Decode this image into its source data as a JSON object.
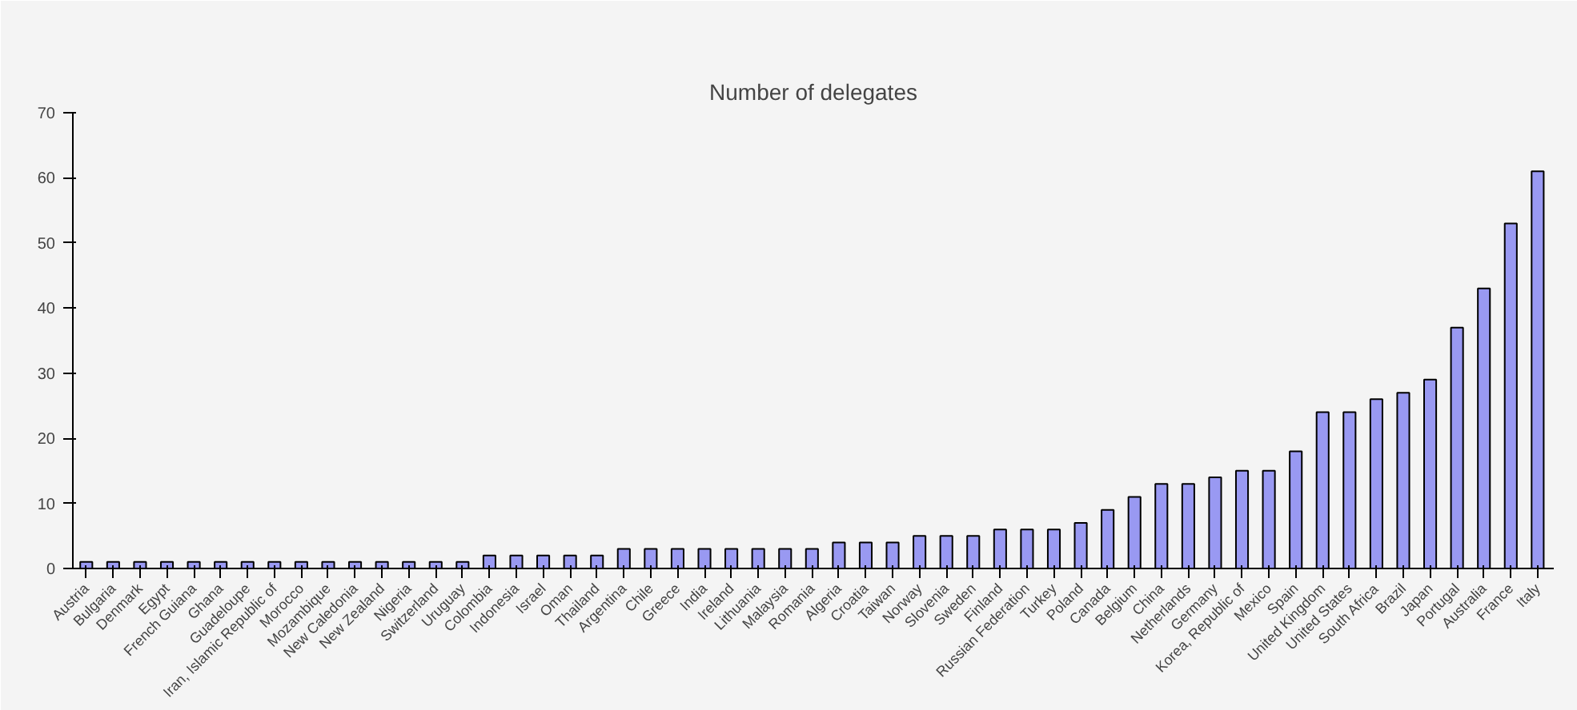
{
  "chart_data": {
    "type": "bar",
    "title": "Number of delegates",
    "categories": [
      "Austria",
      "Bulgaria",
      "Denmark",
      "Egypt",
      "French Guiana",
      "Ghana",
      "Guadeloupe",
      "Iran, Islamic Republic of",
      "Morocco",
      "Mozambique",
      "New Caledonia",
      "New Zealand",
      "Nigeria",
      "Switzerland",
      "Uruguay",
      "Colombia",
      "Indonesia",
      "Israel",
      "Oman",
      "Thailand",
      "Argentina",
      "Chile",
      "Greece",
      "India",
      "Ireland",
      "Lithuania",
      "Malaysia",
      "Romania",
      "Algeria",
      "Croatia",
      "Taiwan",
      "Norway",
      "Slovenia",
      "Sweden",
      "Finland",
      "Russian Federation",
      "Turkey",
      "Poland",
      "Canada",
      "Belgium",
      "China",
      "Netherlands",
      "Germany",
      "Korea, Republic of",
      "Mexico",
      "Spain",
      "United Kingdom",
      "United States",
      "South Africa",
      "Brazil",
      "Japan",
      "Portugal",
      "Australia",
      "France",
      "Italy"
    ],
    "values": [
      1,
      1,
      1,
      1,
      1,
      1,
      1,
      1,
      1,
      1,
      1,
      1,
      1,
      1,
      1,
      2,
      2,
      2,
      2,
      2,
      3,
      3,
      3,
      3,
      3,
      3,
      3,
      3,
      4,
      4,
      4,
      5,
      5,
      5,
      6,
      6,
      6,
      7,
      9,
      11,
      13,
      13,
      14,
      15,
      15,
      18,
      24,
      24,
      26,
      27,
      29,
      37,
      43,
      53,
      61
    ],
    "color": "#9999f2",
    "ylim": [
      0,
      70
    ],
    "yticks": [
      0,
      10,
      20,
      30,
      40,
      50,
      60,
      70
    ]
  }
}
